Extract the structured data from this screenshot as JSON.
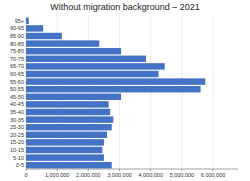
{
  "chart_data": {
    "type": "bar",
    "orientation": "horizontal",
    "title": "Without migration background – 2021",
    "categories": [
      "0-5",
      "5-10",
      "10-15",
      "15-20",
      "20-25",
      "25-30",
      "30-35",
      "35-40",
      "40-45",
      "45-50",
      "50-55",
      "55-60",
      "60-65",
      "65-70",
      "70-75",
      "75-80",
      "80-85",
      "85-90",
      "90-95",
      "95+"
    ],
    "values": [
      2750000,
      2500000,
      2450000,
      2500000,
      2600000,
      2750000,
      2800000,
      2700000,
      2650000,
      3050000,
      5600000,
      5750000,
      4250000,
      4450000,
      3850000,
      3050000,
      2350000,
      1150000,
      550000,
      90000
    ],
    "color": "#4472c4",
    "xlim": [
      0,
      6800000
    ],
    "xticks": [
      0,
      {
        "value": 1000000,
        "label": "1,000,000"
      },
      {
        "value": 2000000,
        "label": "2,000,000"
      },
      {
        "value": 3000000,
        "label": "3,000,000"
      },
      {
        "value": 4000000,
        "label": "4,000,000"
      },
      {
        "value": 5000000,
        "label": "5,000,000"
      },
      {
        "value": 6000000,
        "label": "6,000,000"
      }
    ],
    "grid": true
  }
}
